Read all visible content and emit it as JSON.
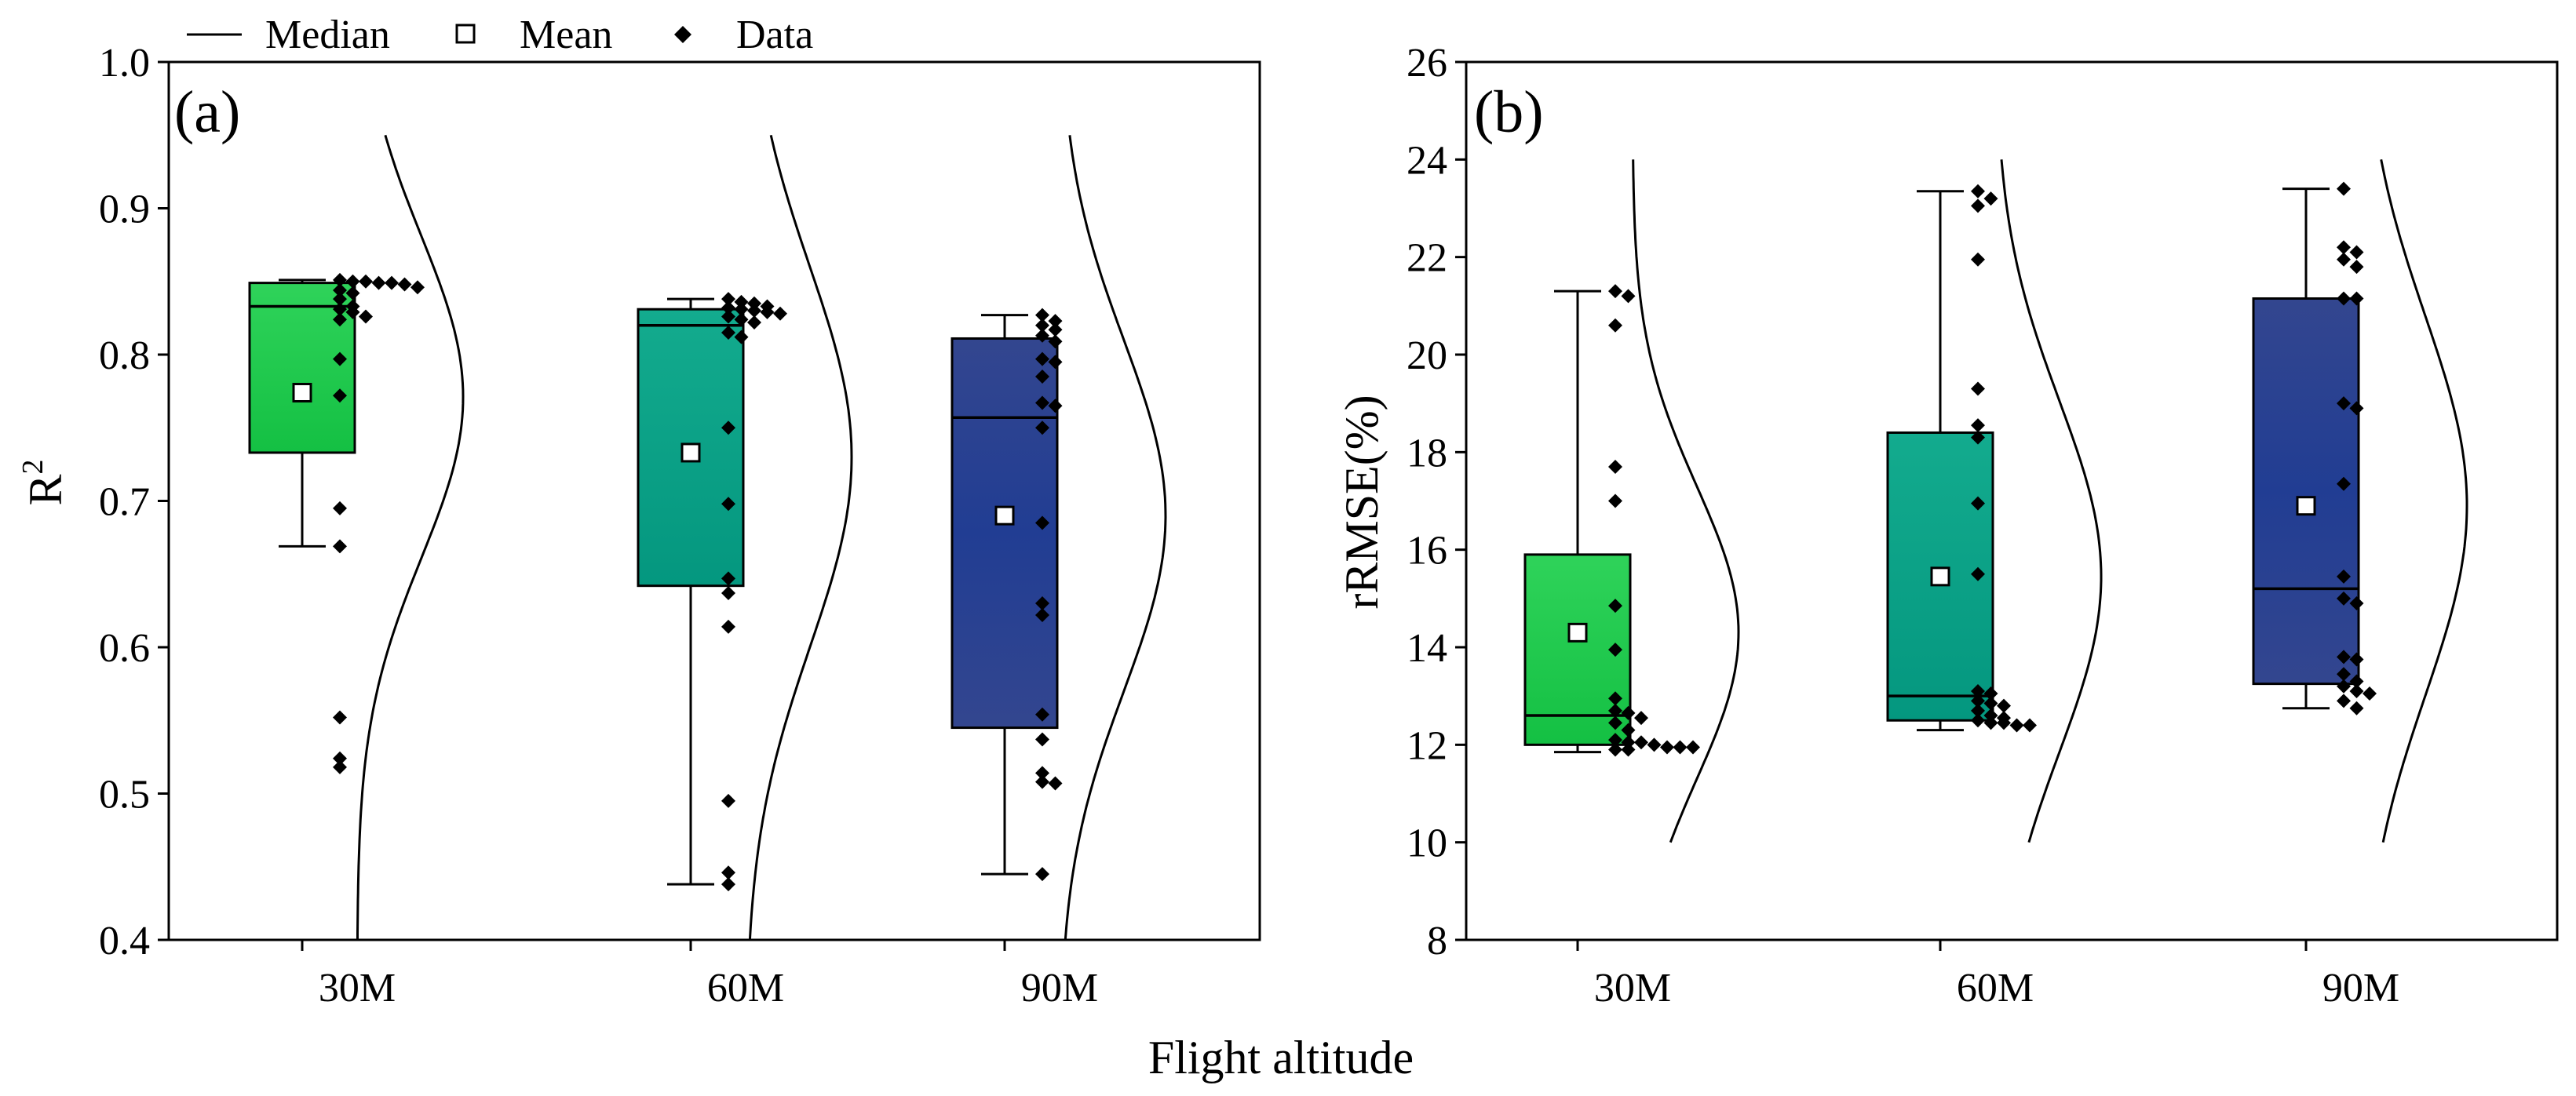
{
  "legend": {
    "median": "Median",
    "mean": "Mean",
    "data": "Data"
  },
  "xlabel": "Flight altitude",
  "chart_data": [
    {
      "type": "box",
      "panel_label": "(a)",
      "ylabel": "R",
      "ylabel_superscript": "2",
      "ylim": [
        0.4,
        1.0
      ],
      "yticks": [
        "0.4",
        "0.5",
        "0.6",
        "0.7",
        "0.8",
        "0.9",
        "1.0"
      ],
      "categories": [
        "30M",
        "60M",
        "90M"
      ],
      "colors": [
        "#1ccb4a",
        "#0aa48c",
        "#29408e"
      ],
      "boxes": [
        {
          "whisker_low": 0.669,
          "q1": 0.733,
          "median": 0.833,
          "q3": 0.849,
          "whisker_high": 0.851,
          "mean": 0.774
        },
        {
          "whisker_low": 0.438,
          "q1": 0.642,
          "median": 0.82,
          "q3": 0.831,
          "whisker_high": 0.838,
          "mean": 0.733
        },
        {
          "whisker_low": 0.445,
          "q1": 0.545,
          "median": 0.757,
          "q3": 0.811,
          "whisker_high": 0.827,
          "mean": 0.69
        }
      ],
      "points": [
        [
          0.851,
          0.85,
          0.85,
          0.849,
          0.849,
          0.848,
          0.846,
          0.844,
          0.842,
          0.838,
          0.833,
          0.831,
          0.829,
          0.826,
          0.824,
          0.797,
          0.772,
          0.695,
          0.669,
          0.552,
          0.524,
          0.518
        ],
        [
          0.838,
          0.836,
          0.835,
          0.833,
          0.832,
          0.831,
          0.83,
          0.829,
          0.828,
          0.826,
          0.824,
          0.822,
          0.815,
          0.812,
          0.75,
          0.698,
          0.647,
          0.637,
          0.614,
          0.495,
          0.446,
          0.438
        ],
        [
          0.827,
          0.823,
          0.82,
          0.817,
          0.813,
          0.809,
          0.797,
          0.795,
          0.785,
          0.767,
          0.765,
          0.75,
          0.685,
          0.63,
          0.622,
          0.554,
          0.537,
          0.514,
          0.508,
          0.507,
          0.445
        ]
      ],
      "density": [
        {
          "mu": 0.771,
          "sigma": 0.11,
          "y_range": [
            0.4,
            0.95
          ]
        },
        {
          "mu": 0.73,
          "sigma": 0.13,
          "y_range": [
            0.4,
            0.95
          ]
        },
        {
          "mu": 0.69,
          "sigma": 0.12,
          "y_range": [
            0.4,
            0.95
          ]
        }
      ]
    },
    {
      "type": "box",
      "panel_label": "(b)",
      "ylabel": "rRMSE(%)",
      "ylim": [
        8,
        26
      ],
      "yticks": [
        "8",
        "10",
        "12",
        "14",
        "16",
        "18",
        "20",
        "22",
        "24",
        "26"
      ],
      "categories": [
        "30M",
        "60M",
        "90M"
      ],
      "colors": [
        "#1ccb4a",
        "#0aa48c",
        "#29408e"
      ],
      "boxes": [
        {
          "whisker_low": 11.85,
          "q1": 12.0,
          "median": 12.6,
          "q3": 15.9,
          "whisker_high": 21.3,
          "mean": 14.3
        },
        {
          "whisker_low": 12.3,
          "q1": 12.5,
          "median": 13.0,
          "q3": 18.4,
          "whisker_high": 23.35,
          "mean": 15.45
        },
        {
          "whisker_low": 12.75,
          "q1": 13.25,
          "median": 15.2,
          "q3": 21.15,
          "whisker_high": 23.4,
          "mean": 16.9
        }
      ],
      "points": [
        [
          21.3,
          21.2,
          20.6,
          17.7,
          17.0,
          14.85,
          13.95,
          12.95,
          12.7,
          12.65,
          12.55,
          12.45,
          12.3,
          12.05,
          11.95,
          11.95,
          11.9,
          11.9,
          11.95,
          12.0,
          12.05,
          12.1
        ],
        [
          23.35,
          23.2,
          23.05,
          21.95,
          19.3,
          18.55,
          18.3,
          16.95,
          15.5,
          13.1,
          13.05,
          12.9,
          12.85,
          12.8,
          12.7,
          12.6,
          12.5,
          12.45,
          12.4,
          12.4,
          12.45,
          12.55
        ],
        [
          23.4,
          22.2,
          22.1,
          21.95,
          21.8,
          21.15,
          21.15,
          19.0,
          18.9,
          17.35,
          15.45,
          15.0,
          14.9,
          13.8,
          13.75,
          13.45,
          13.3,
          13.2,
          13.1,
          13.05,
          12.9,
          12.75
        ]
      ],
      "density": [
        {
          "mu": 14.3,
          "sigma": 3.0,
          "y_range": [
            10,
            24
          ]
        },
        {
          "mu": 15.45,
          "sigma": 3.6,
          "y_range": [
            10,
            24
          ]
        },
        {
          "mu": 16.9,
          "sigma": 3.9,
          "y_range": [
            10,
            24
          ]
        }
      ]
    }
  ]
}
